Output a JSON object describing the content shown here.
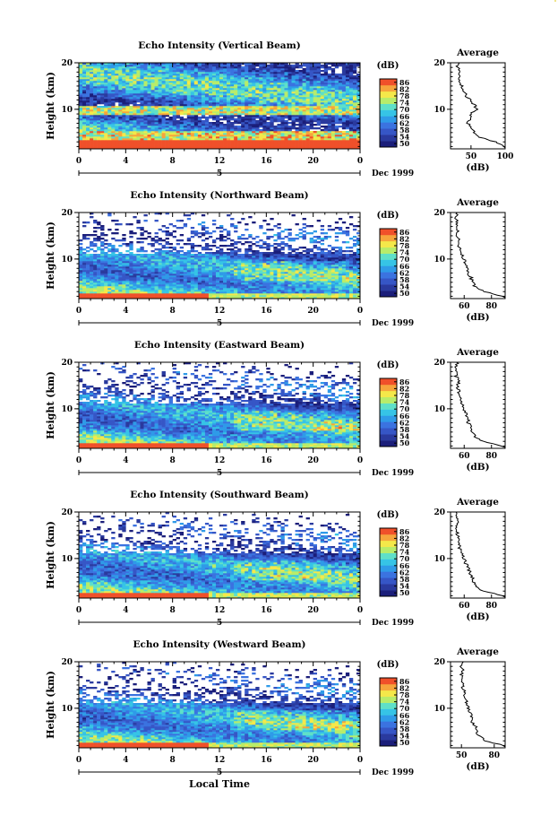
{
  "xlabel_common": "Local Time",
  "date_label": "Dec 1999",
  "date_marker": "5",
  "colorbar": {
    "title": "(dB)",
    "ticks": [
      "50",
      "54",
      "58",
      "62",
      "66",
      "70",
      "74",
      "78",
      "82",
      "86"
    ],
    "colors": [
      "#1b1e7a",
      "#2a3a9e",
      "#3656c6",
      "#3b73e0",
      "#2f9be8",
      "#36c4e6",
      "#5fe0c8",
      "#b8ec6a",
      "#f4e84a",
      "#f6a43c",
      "#f0502a"
    ]
  },
  "chart_data": [
    {
      "type": "heatmap",
      "title": "Echo Intensity (Vertical Beam)",
      "xlabel": "",
      "ylabel": "Height (km)",
      "xlim": [
        0,
        24
      ],
      "ylim": [
        1.5,
        20
      ],
      "x_ticks": [
        "0",
        "4",
        "8",
        "12",
        "16",
        "20",
        "0"
      ],
      "y_ticks": [
        "10",
        "20"
      ],
      "profile": {
        "title": "Average",
        "xlabel": "(dB)",
        "xlim": [
          20,
          100
        ],
        "x_ticks": [
          "50",
          "100"
        ],
        "heights": [
          2,
          3,
          4,
          5,
          6,
          7,
          8,
          9,
          10,
          11,
          12,
          13,
          14,
          15,
          16,
          17,
          18,
          19,
          20
        ],
        "values": [
          98,
          85,
          62,
          55,
          52,
          45,
          48,
          50,
          58,
          55,
          48,
          42,
          40,
          36,
          33,
          32,
          34,
          30,
          32
        ]
      }
    },
    {
      "type": "heatmap",
      "title": "Echo Intensity (Northward Beam)",
      "xlabel": "",
      "ylabel": "Height (km)",
      "xlim": [
        0,
        24
      ],
      "ylim": [
        1.5,
        20
      ],
      "x_ticks": [
        "0",
        "4",
        "8",
        "12",
        "16",
        "20",
        "0"
      ],
      "y_ticks": [
        "10",
        "20"
      ],
      "profile": {
        "title": "Average",
        "xlabel": "(dB)",
        "xlim": [
          50,
          90
        ],
        "x_ticks": [
          "60",
          "80"
        ],
        "heights": [
          2,
          3,
          4,
          5,
          6,
          7,
          8,
          9,
          10,
          11,
          12,
          13,
          14,
          15,
          16,
          17,
          18,
          19,
          20
        ],
        "values": [
          88,
          75,
          68,
          66,
          65,
          62,
          63,
          61,
          60,
          58,
          57,
          56,
          56,
          55,
          55,
          54,
          55,
          54,
          55
        ]
      }
    },
    {
      "type": "heatmap",
      "title": "Echo Intensity (Eastward Beam)",
      "xlabel": "",
      "ylabel": "Height (km)",
      "xlim": [
        0,
        24
      ],
      "ylim": [
        1.5,
        20
      ],
      "x_ticks": [
        "0",
        "4",
        "8",
        "12",
        "16",
        "20",
        "0"
      ],
      "y_ticks": [
        "10",
        "20"
      ],
      "profile": {
        "title": "Average",
        "xlabel": "(dB)",
        "xlim": [
          50,
          90
        ],
        "x_ticks": [
          "60",
          "80"
        ],
        "heights": [
          2,
          3,
          4,
          5,
          6,
          7,
          8,
          9,
          10,
          11,
          12,
          13,
          14,
          15,
          16,
          17,
          18,
          19,
          20
        ],
        "values": [
          87,
          74,
          68,
          66,
          65,
          63,
          63,
          61,
          60,
          58,
          57,
          56,
          56,
          55,
          56,
          54,
          55,
          54,
          55
        ]
      }
    },
    {
      "type": "heatmap",
      "title": "Echo Intensity (Southward Beam)",
      "xlabel": "",
      "ylabel": "Height (km)",
      "xlim": [
        0,
        24
      ],
      "ylim": [
        1.5,
        20
      ],
      "x_ticks": [
        "0",
        "4",
        "8",
        "12",
        "16",
        "20",
        "0"
      ],
      "y_ticks": [
        "10",
        "20"
      ],
      "profile": {
        "title": "Average",
        "xlabel": "(dB)",
        "xlim": [
          50,
          90
        ],
        "x_ticks": [
          "60",
          "80"
        ],
        "heights": [
          2,
          3,
          4,
          5,
          6,
          7,
          8,
          9,
          10,
          11,
          12,
          13,
          14,
          15,
          16,
          17,
          18,
          19,
          20
        ],
        "values": [
          88,
          74,
          69,
          67,
          66,
          64,
          63,
          61,
          60,
          58,
          57,
          56,
          56,
          55,
          55,
          54,
          55,
          54,
          55
        ]
      }
    },
    {
      "type": "heatmap",
      "title": "Echo Intensity (Westward Beam)",
      "xlabel": "",
      "ylabel": "Height (km)",
      "xlim": [
        0,
        24
      ],
      "ylim": [
        1.5,
        20
      ],
      "x_ticks": [
        "0",
        "4",
        "8",
        "12",
        "16",
        "20",
        "0"
      ],
      "y_ticks": [
        "10",
        "20"
      ],
      "profile": {
        "title": "Average",
        "xlabel": "(dB)",
        "xlim": [
          40,
          90
        ],
        "x_ticks": [
          "50",
          "80"
        ],
        "heights": [
          2,
          3,
          4,
          5,
          6,
          7,
          8,
          9,
          10,
          11,
          12,
          13,
          14,
          15,
          16,
          17,
          18,
          19,
          20
        ],
        "values": [
          88,
          72,
          66,
          64,
          63,
          60,
          60,
          58,
          56,
          55,
          54,
          53,
          52,
          51,
          51,
          50,
          51,
          50,
          51
        ]
      }
    }
  ]
}
